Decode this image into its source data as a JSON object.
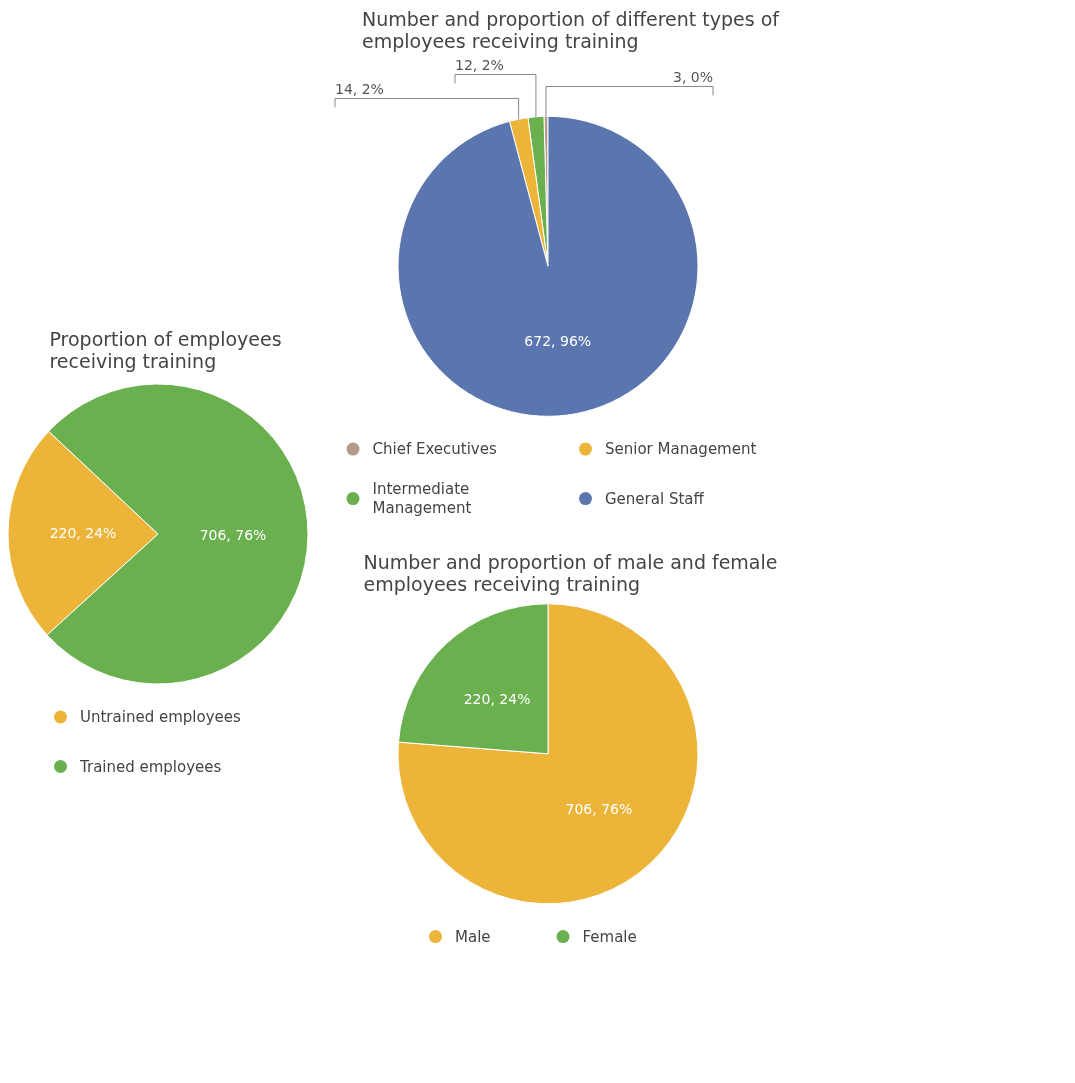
{
  "chart_data": [
    {
      "type": "pie",
      "title": "Proportion of employees receiving training",
      "categories": [
        "Untrained employees",
        "Trained employees"
      ],
      "values": [
        220,
        706
      ],
      "colors": [
        "#ecb53a",
        "#6ab04f"
      ],
      "value_labels": [
        "220, 24%",
        "706, 76%"
      ],
      "legend": "bottom"
    },
    {
      "type": "pie",
      "title": "Number and proportion of different types of employees receiving training",
      "categories": [
        "Chief Executives",
        "Intermediate Management",
        "Senior Management",
        "General Staff"
      ],
      "values": [
        3,
        12,
        14,
        672
      ],
      "colors": [
        "#b39a8a",
        "#6ab04f",
        "#ecb53a",
        "#5b76ae"
      ],
      "value_labels": [
        "3, 0%",
        "12, 2%",
        "14, 2%",
        "672, 96%"
      ],
      "legend": "bottom"
    },
    {
      "type": "pie",
      "title": "Number and proportion of male and female employees receiving training",
      "categories": [
        "Male",
        "Female"
      ],
      "values": [
        706,
        220
      ],
      "colors": [
        "#ecb53a",
        "#6ab04f"
      ],
      "value_labels": [
        "706, 76%",
        "220, 24%"
      ],
      "legend": "bottom"
    }
  ]
}
